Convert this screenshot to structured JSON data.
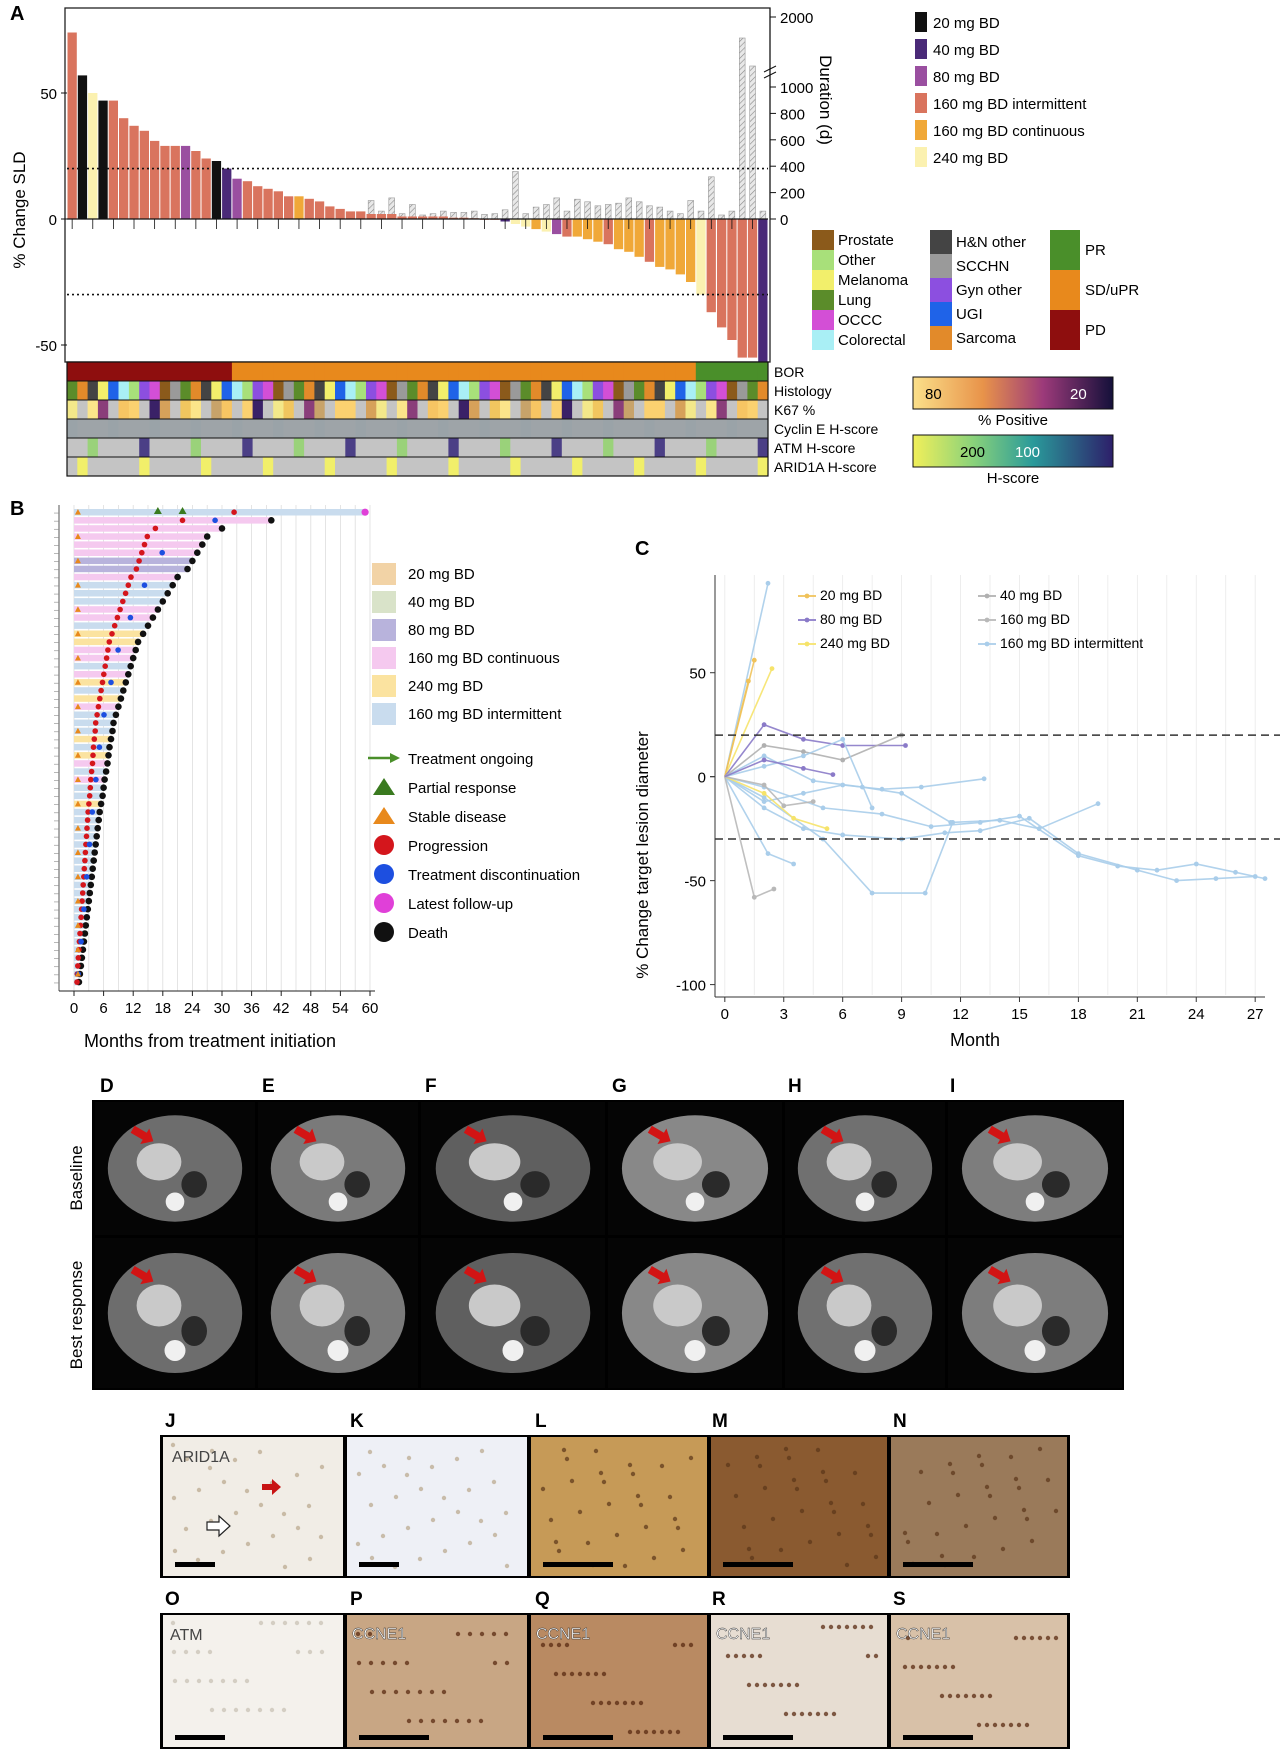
{
  "panel_letters": {
    "A": "A",
    "B": "B",
    "C": "C",
    "D": "D",
    "E": "E",
    "F": "F",
    "G": "G",
    "H": "H",
    "I": "I",
    "J": "J",
    "K": "K",
    "L": "L",
    "M": "M",
    "N": "N",
    "O": "O",
    "P": "P",
    "Q": "Q",
    "R": "R",
    "S": "S"
  },
  "colors": {
    "dose": {
      "20": "#111111",
      "40": "#4a2a78",
      "80": "#9a4fa0",
      "160i": "#d9745e",
      "160c": "#f0a838",
      "240": "#fbf1b0"
    },
    "hist": {
      "Prostate": "#8b5a1b",
      "Other": "#a8e07a",
      "Melanoma": "#f2ef6b",
      "Lung": "#5b8c2a",
      "OCCC": "#d34fd6",
      "Colorectal": "#a9eff5",
      "H&N other": "#444444",
      "SCCHN": "#9a9a9a",
      "Gyn other": "#8c4fe0",
      "UGI": "#1f63e8",
      "Sarcoma": "#e28a2a"
    },
    "bor": {
      "PR": "#4a8f2a",
      "SD/uPR": "#e8891c",
      "PD": "#8e0e0e"
    }
  },
  "chart_data": [
    {
      "type": "bar",
      "panel": "A",
      "ylabel": "% Change SLD",
      "y2label": "Duration (d)",
      "y_ticks": [
        "50",
        "0",
        "-50"
      ],
      "y2_ticks": [
        "2000",
        "1000",
        "800",
        "600",
        "400",
        "200",
        "0"
      ],
      "ylim": [
        -58,
        76
      ],
      "legend_dose": [
        "20 mg BD",
        "40 mg BD",
        "80 mg BD",
        "160 mg BD intermittent",
        "160 mg BD continuous",
        "240 mg BD"
      ],
      "legend_hist_left": [
        "Prostate",
        "Other",
        "Melanoma",
        "Lung",
        "OCCC",
        "Colorectal"
      ],
      "legend_hist_right": [
        "H&N other",
        "SCCHN",
        "Gyn other",
        "UGI",
        "Sarcoma"
      ],
      "legend_bor": [
        "PR",
        "SD/uPR",
        "PD"
      ],
      "track_labels": [
        "BOR",
        "Histology",
        "K67 %",
        "Cyclin E H-score",
        "ATM H-score",
        "ARID1A H-score"
      ],
      "scale_pct": {
        "ticks": [
          "80",
          "20"
        ],
        "label": "% Positive"
      },
      "scale_h": {
        "ticks": [
          "200",
          "100"
        ],
        "label": "H-score"
      },
      "reference_lines": [
        20,
        -30
      ],
      "sld_values": [
        74,
        57,
        50,
        47,
        47,
        40,
        37,
        35,
        31,
        29,
        29,
        29,
        27,
        24,
        23,
        20,
        16,
        15,
        13,
        12,
        11,
        9,
        9,
        8,
        7,
        5,
        4,
        3,
        3,
        2,
        2,
        2,
        1,
        1,
        1,
        1,
        1,
        0.5,
        0.5,
        0.3,
        0,
        0,
        -1,
        -2,
        -3,
        -4,
        -5,
        -6,
        -7,
        -7,
        -8,
        -9,
        -10,
        -12,
        -13,
        -15,
        -17,
        -19,
        -20,
        -22,
        -25,
        -30,
        -37,
        -43,
        -48,
        -55,
        -55,
        -58
      ],
      "sld_dose": [
        "160i",
        "20",
        "240",
        "20",
        "160i",
        "160i",
        "160i",
        "160i",
        "160i",
        "160i",
        "160i",
        "80",
        "160i",
        "160i",
        "20",
        "40",
        "80",
        "160i",
        "160i",
        "160i",
        "160i",
        "160i",
        "160c",
        "160i",
        "160i",
        "160i",
        "160i",
        "160i",
        "160i",
        "160i",
        "160i",
        "160i",
        "160i",
        "160i",
        "160i",
        "160i",
        "160i",
        "160i",
        "160i",
        "160i",
        "160i",
        "160i",
        "40",
        "240",
        "240",
        "160c",
        "240",
        "80",
        "160i",
        "160c",
        "160c",
        "160c",
        "160i",
        "160c",
        "160c",
        "160c",
        "160i",
        "160c",
        "160c",
        "160c",
        "160c",
        "240",
        "160i",
        "160i",
        "160i",
        "160i",
        "160i",
        "40"
      ],
      "duration_values": [
        60,
        55,
        50,
        40,
        50,
        40,
        35,
        50,
        40,
        40,
        35,
        45,
        40,
        60,
        40,
        50,
        60,
        45,
        40,
        80,
        150,
        40,
        120,
        40,
        70,
        60,
        45,
        50,
        50,
        140,
        60,
        160,
        40,
        110,
        30,
        40,
        60,
        50,
        50,
        60,
        35,
        40,
        70,
        360,
        40,
        90,
        110,
        160,
        60,
        150,
        130,
        100,
        110,
        120,
        160,
        130,
        100,
        90,
        60,
        40,
        140,
        60,
        320,
        30,
        60,
        1700,
        1300,
        60
      ]
    },
    {
      "type": "table",
      "panel": "B",
      "xlabel": "Months from treatment initiation",
      "x_ticks": [
        "0",
        "6",
        "12",
        "18",
        "24",
        "30",
        "36",
        "42",
        "48",
        "54",
        "60"
      ],
      "xlim": [
        0,
        60
      ],
      "legend_dose": [
        "20 mg BD",
        "40 mg BD",
        "80 mg BD",
        "160 mg BD continuous",
        "240 mg BD",
        "160 mg BD intermittent"
      ],
      "legend_events": [
        "Treatment ongoing",
        "Partial response",
        "Stable disease",
        "Progression",
        "Treatment discontinuation",
        "Latest follow-up",
        "Death"
      ],
      "swim_durations": [
        59,
        40,
        30,
        27,
        26,
        25,
        24,
        23,
        21,
        20,
        19,
        18,
        17,
        16,
        15,
        14,
        13,
        12.5,
        12,
        11.5,
        11,
        10.5,
        10,
        9.5,
        9,
        8.5,
        8,
        7.8,
        7.5,
        7.2,
        7,
        6.8,
        6.5,
        6.2,
        6,
        5.8,
        5.5,
        5.2,
        5,
        4.8,
        4.6,
        4.4,
        4.2,
        4,
        3.8,
        3.6,
        3.4,
        3.2,
        3,
        2.8,
        2.6,
        2.4,
        2.2,
        2,
        1.8,
        1.6,
        1.4,
        1.2,
        1
      ],
      "swim_dose": [
        "160i",
        "160c",
        "160c",
        "160c",
        "160c",
        "160c",
        "80",
        "80",
        "160c",
        "160i",
        "160i",
        "160i",
        "160c",
        "160c",
        "160i",
        "240",
        "240",
        "160c",
        "160c",
        "160i",
        "160c",
        "240",
        "160i",
        "240",
        "160c",
        "160i",
        "160i",
        "160i",
        "240",
        "160i",
        "240",
        "160c",
        "160i",
        "160c",
        "160i",
        "160i",
        "240",
        "160i",
        "160i",
        "160i",
        "160i",
        "160i",
        "160i",
        "160i",
        "160i",
        "160i",
        "160i",
        "160i",
        "160i",
        "160i",
        "160i",
        "160i",
        "160i",
        "160i",
        "160i",
        "160i",
        "160i",
        "160i",
        "160i"
      ],
      "death_flags": [
        false,
        true,
        true,
        true,
        true,
        true,
        true,
        true,
        true,
        true,
        true,
        true,
        true,
        true,
        true,
        true,
        true,
        true,
        true,
        true,
        true,
        true,
        true,
        true,
        true,
        true,
        true,
        true,
        true,
        true,
        true,
        true,
        true,
        true,
        true,
        true,
        true,
        true,
        true,
        true,
        true,
        true,
        true,
        true,
        true,
        true,
        true,
        true,
        true,
        true,
        true,
        true,
        true,
        true,
        true,
        true,
        true,
        true,
        true
      ]
    },
    {
      "type": "line",
      "panel": "C",
      "xlabel": "Month",
      "ylabel": "% Change target lesion diameter",
      "x_ticks": [
        "0",
        "3",
        "6",
        "9",
        "12",
        "15",
        "18",
        "21",
        "24",
        "27"
      ],
      "y_ticks": [
        "50",
        "0",
        "-50",
        "-100"
      ],
      "xlim": [
        -0.5,
        27.5
      ],
      "ylim": [
        -105,
        97
      ],
      "reference_lines": [
        20,
        -30
      ],
      "legend": [
        "20 mg BD",
        "40 mg BD",
        "80 mg BD",
        "160 mg BD",
        "240 mg BD",
        "160 mg BD intermittent"
      ],
      "series": [
        {
          "dose": "160i",
          "points": [
            [
              0,
              0
            ],
            [
              2.2,
              93
            ]
          ]
        },
        {
          "dose": "20",
          "points": [
            [
              0,
              0
            ],
            [
              1.5,
              56
            ]
          ]
        },
        {
          "dose": "240",
          "points": [
            [
              0,
              0
            ],
            [
              2.4,
              52
            ]
          ]
        },
        {
          "dose": "20",
          "points": [
            [
              0,
              0
            ],
            [
              1.2,
              46
            ]
          ]
        },
        {
          "dose": "80",
          "points": [
            [
              0,
              0
            ],
            [
              2,
              25
            ],
            [
              4,
              18
            ],
            [
              6,
              15
            ],
            [
              9.2,
              15
            ]
          ]
        },
        {
          "dose": "160i",
          "points": [
            [
              0,
              0
            ],
            [
              2,
              10
            ],
            [
              4.5,
              -2
            ],
            [
              7,
              -5
            ],
            [
              9,
              -8
            ],
            [
              11.5,
              -22
            ],
            [
              14,
              -21
            ],
            [
              16,
              -25
            ],
            [
              19,
              -13
            ]
          ]
        },
        {
          "dose": "160i",
          "points": [
            [
              0,
              0
            ],
            [
              2,
              -5
            ],
            [
              5,
              -15
            ],
            [
              8,
              -18
            ],
            [
              10.5,
              -24
            ],
            [
              13,
              -22
            ],
            [
              15,
              -19
            ],
            [
              18,
              -38
            ],
            [
              20,
              -43
            ],
            [
              22,
              -45
            ],
            [
              24,
              -42
            ],
            [
              26,
              -46
            ],
            [
              27.5,
              -49
            ]
          ]
        },
        {
          "dose": "160i",
          "points": [
            [
              0,
              0
            ],
            [
              2,
              -15
            ],
            [
              4,
              -25
            ],
            [
              6,
              -28
            ],
            [
              9,
              -30
            ],
            [
              11.2,
              -27
            ],
            [
              13,
              -26
            ],
            [
              15.5,
              -20
            ],
            [
              18,
              -37
            ],
            [
              21,
              -45
            ],
            [
              23,
              -50
            ],
            [
              25,
              -49
            ],
            [
              27,
              -48
            ]
          ]
        },
        {
          "dose": "160i",
          "points": [
            [
              0,
              0
            ],
            [
              2,
              -10
            ],
            [
              5,
              -30
            ],
            [
              7.5,
              -56
            ],
            [
              10.2,
              -56
            ],
            [
              11.6,
              -22
            ]
          ]
        },
        {
          "dose": "160i",
          "points": [
            [
              0,
              0
            ],
            [
              2.2,
              -37
            ],
            [
              3.5,
              -42
            ]
          ]
        },
        {
          "dose": "160",
          "points": [
            [
              0,
              0
            ],
            [
              1.5,
              -58
            ],
            [
              2.5,
              -54
            ]
          ]
        },
        {
          "dose": "160i",
          "points": [
            [
              0,
              0
            ],
            [
              2,
              -12
            ],
            [
              4,
              -8
            ],
            [
              6,
              -4
            ],
            [
              8,
              -6
            ],
            [
              10,
              -5
            ],
            [
              13.2,
              -1
            ]
          ]
        },
        {
          "dose": "40",
          "points": [
            [
              0,
              0
            ],
            [
              2,
              15
            ],
            [
              4,
              12
            ],
            [
              6,
              8
            ],
            [
              9,
              20
            ]
          ]
        },
        {
          "dose": "160i",
          "points": [
            [
              0,
              0
            ],
            [
              2,
              5
            ],
            [
              4,
              10
            ],
            [
              6,
              18
            ],
            [
              7.5,
              -15
            ]
          ]
        },
        {
          "dose": "240",
          "points": [
            [
              0,
              0
            ],
            [
              2,
              -8
            ],
            [
              3.5,
              -20
            ],
            [
              5.2,
              -25
            ]
          ]
        },
        {
          "dose": "160",
          "points": [
            [
              0,
              0
            ],
            [
              2,
              -4
            ],
            [
              3,
              -14
            ],
            [
              4.5,
              -12
            ]
          ]
        },
        {
          "dose": "80",
          "points": [
            [
              0,
              0
            ],
            [
              2,
              8
            ],
            [
              4,
              4
            ],
            [
              5.5,
              1
            ]
          ]
        }
      ]
    }
  ],
  "row_labels": {
    "baseline": "Baseline",
    "best": "Best response"
  },
  "ihc_labels": {
    "J": "ARID1A",
    "O": "ATM",
    "P": "CCNE1",
    "Q": "CCNE1",
    "R": "CCNE1",
    "S": "CCNE1"
  }
}
